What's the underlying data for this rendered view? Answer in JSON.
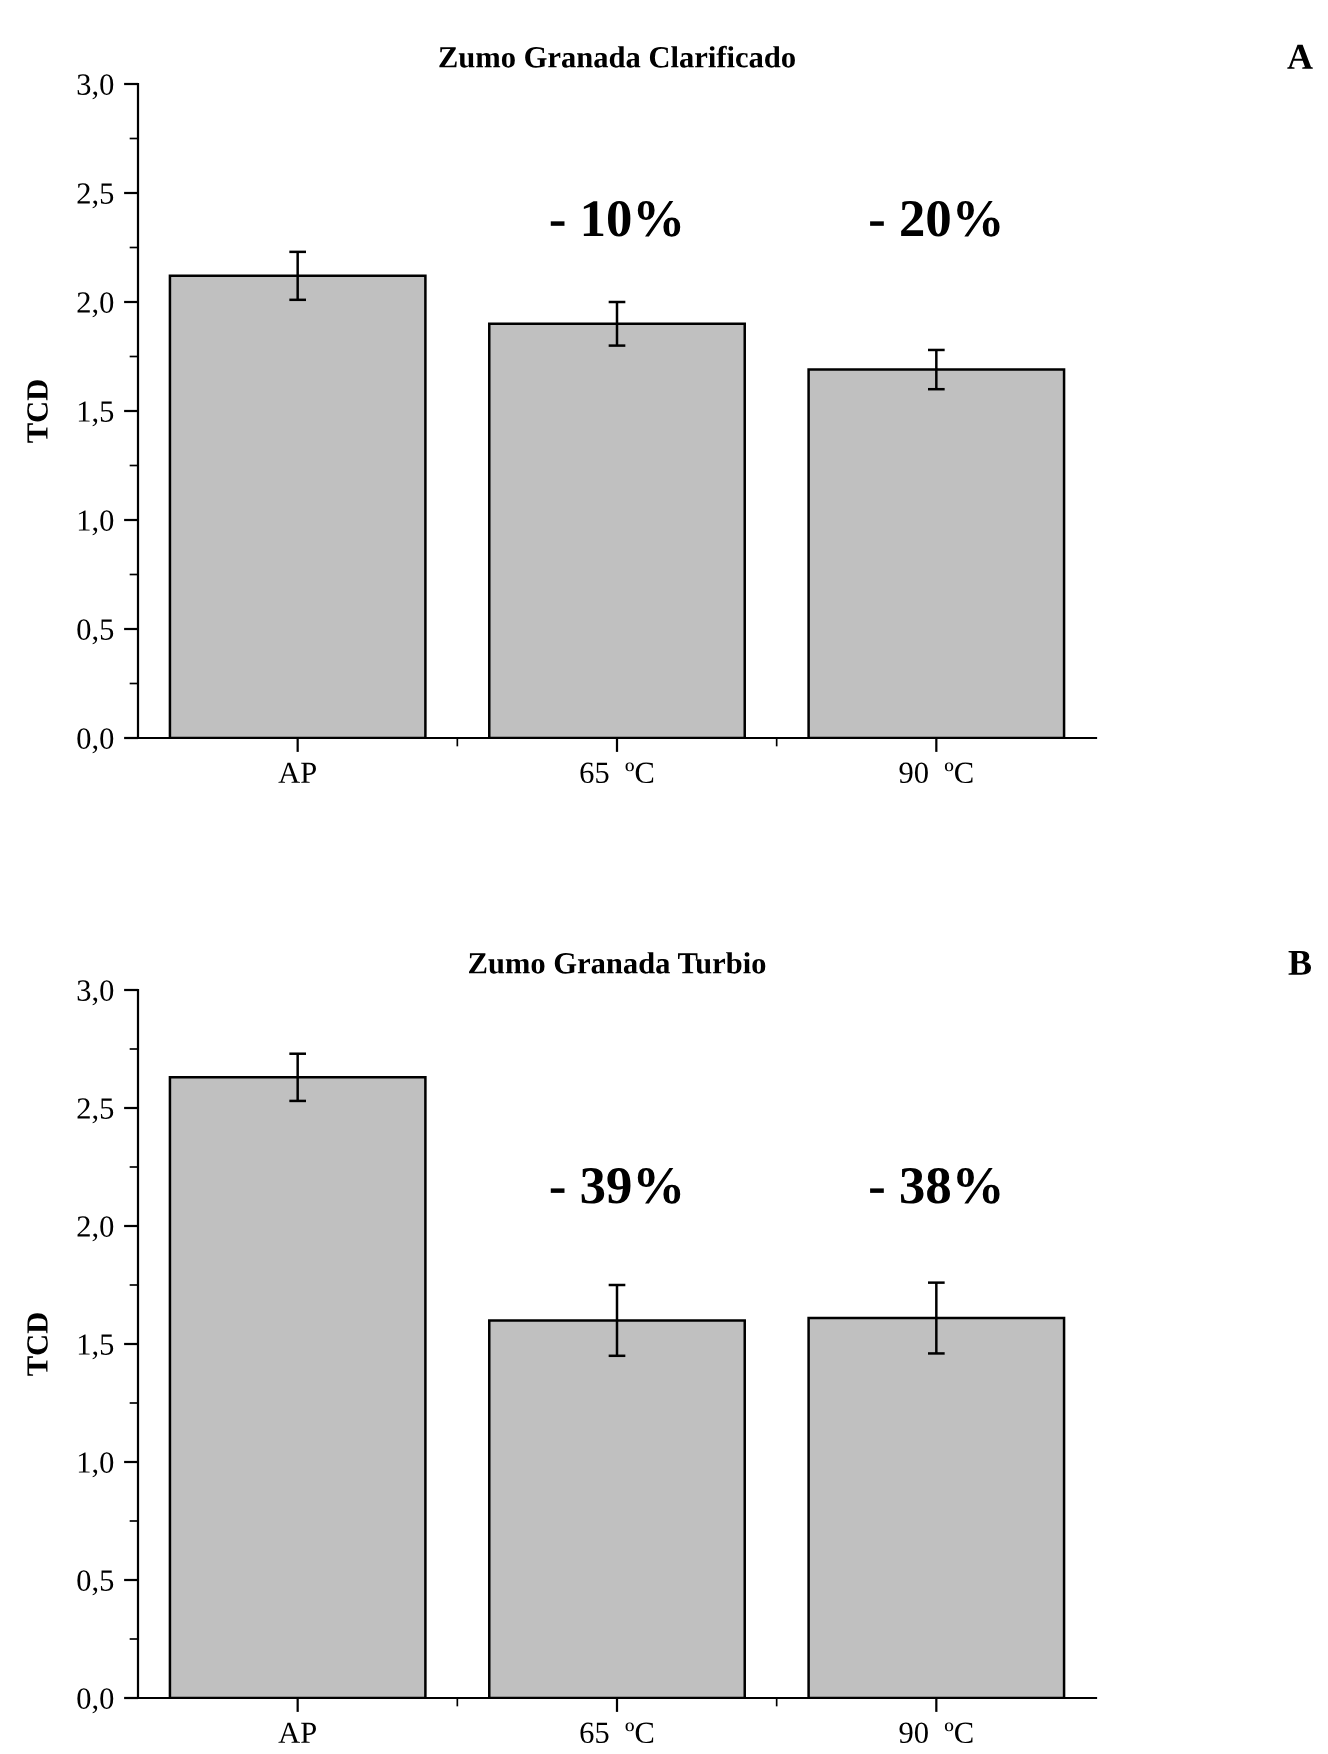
{
  "chart_data": [
    {
      "type": "bar",
      "title": "Zumo Granada Clarificado",
      "ylabel": "TCD",
      "categories": [
        "AP",
        "65  ºC",
        "90  ºC"
      ],
      "values": [
        2.12,
        1.9,
        1.69
      ],
      "errors": [
        0.11,
        0.1,
        0.09
      ],
      "color": "#c0c0c0",
      "ylim": [
        0,
        3.0
      ],
      "yticks": [
        {
          "value": 0,
          "label": "0,0"
        },
        {
          "value": 0.5,
          "label": "0,5"
        },
        {
          "value": 1.0,
          "label": "1,0"
        },
        {
          "value": 1.5,
          "label": "1,5"
        },
        {
          "value": 2.0,
          "label": "2,0"
        },
        {
          "value": 2.5,
          "label": "2,5"
        },
        {
          "value": 3.0,
          "label": "3,0"
        }
      ],
      "annotations": [
        "- 10%",
        "- 20%",
        "A"
      ]
    },
    {
      "type": "bar",
      "title": "Zumo Granada Turbio",
      "ylabel": "TCD",
      "categories": [
        "AP",
        "65  ºC",
        "90  ºC"
      ],
      "values": [
        2.63,
        1.6,
        1.61
      ],
      "errors": [
        0.1,
        0.15,
        0.15
      ],
      "color": "#c0c0c0",
      "ylim": [
        0,
        3.0
      ],
      "yticks": [
        {
          "value": 0,
          "label": "0,0"
        },
        {
          "value": 0.5,
          "label": "0,5"
        },
        {
          "value": 1.0,
          "label": "1,0"
        },
        {
          "value": 1.5,
          "label": "1,5"
        },
        {
          "value": 2.0,
          "label": "2,0"
        },
        {
          "value": 2.5,
          "label": "2,5"
        },
        {
          "value": 3.0,
          "label": "3,0"
        }
      ],
      "annotations": [
        "- 39%",
        "- 38%",
        "B"
      ]
    }
  ]
}
